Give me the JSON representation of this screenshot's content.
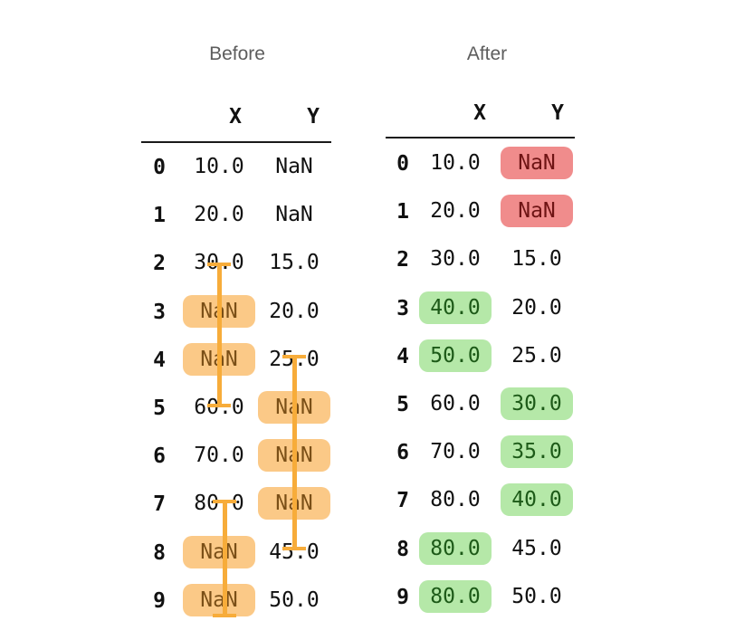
{
  "before": {
    "title": "Before",
    "columns": [
      "X",
      "Y"
    ],
    "rows": [
      {
        "index": "0",
        "x": "10.0",
        "y": "NaN"
      },
      {
        "index": "1",
        "x": "20.0",
        "y": "NaN"
      },
      {
        "index": "2",
        "x": "30.0",
        "y": "15.0"
      },
      {
        "index": "3",
        "x": "NaN",
        "y": "20.0"
      },
      {
        "index": "4",
        "x": "NaN",
        "y": "25.0"
      },
      {
        "index": "5",
        "x": "60.0",
        "y": "NaN"
      },
      {
        "index": "6",
        "x": "70.0",
        "y": "NaN"
      },
      {
        "index": "7",
        "x": "80.0",
        "y": "NaN"
      },
      {
        "index": "8",
        "x": "NaN",
        "y": "45.0"
      },
      {
        "index": "9",
        "x": "NaN",
        "y": "50.0"
      }
    ]
  },
  "after": {
    "title": "After",
    "columns": [
      "X",
      "Y"
    ],
    "rows": [
      {
        "index": "0",
        "x": "10.0",
        "y": "NaN"
      },
      {
        "index": "1",
        "x": "20.0",
        "y": "NaN"
      },
      {
        "index": "2",
        "x": "30.0",
        "y": "15.0"
      },
      {
        "index": "3",
        "x": "40.0",
        "y": "20.0"
      },
      {
        "index": "4",
        "x": "50.0",
        "y": "25.0"
      },
      {
        "index": "5",
        "x": "60.0",
        "y": "30.0"
      },
      {
        "index": "6",
        "x": "70.0",
        "y": "35.0"
      },
      {
        "index": "7",
        "x": "80.0",
        "y": "40.0"
      },
      {
        "index": "8",
        "x": "80.0",
        "y": "45.0"
      },
      {
        "index": "9",
        "x": "80.0",
        "y": "50.0"
      }
    ]
  },
  "colors": {
    "missing": "#fbc987",
    "remaining_nan": "#f08c8c",
    "filled": "#b5e8a8",
    "bracket": "#f7ac3a"
  }
}
